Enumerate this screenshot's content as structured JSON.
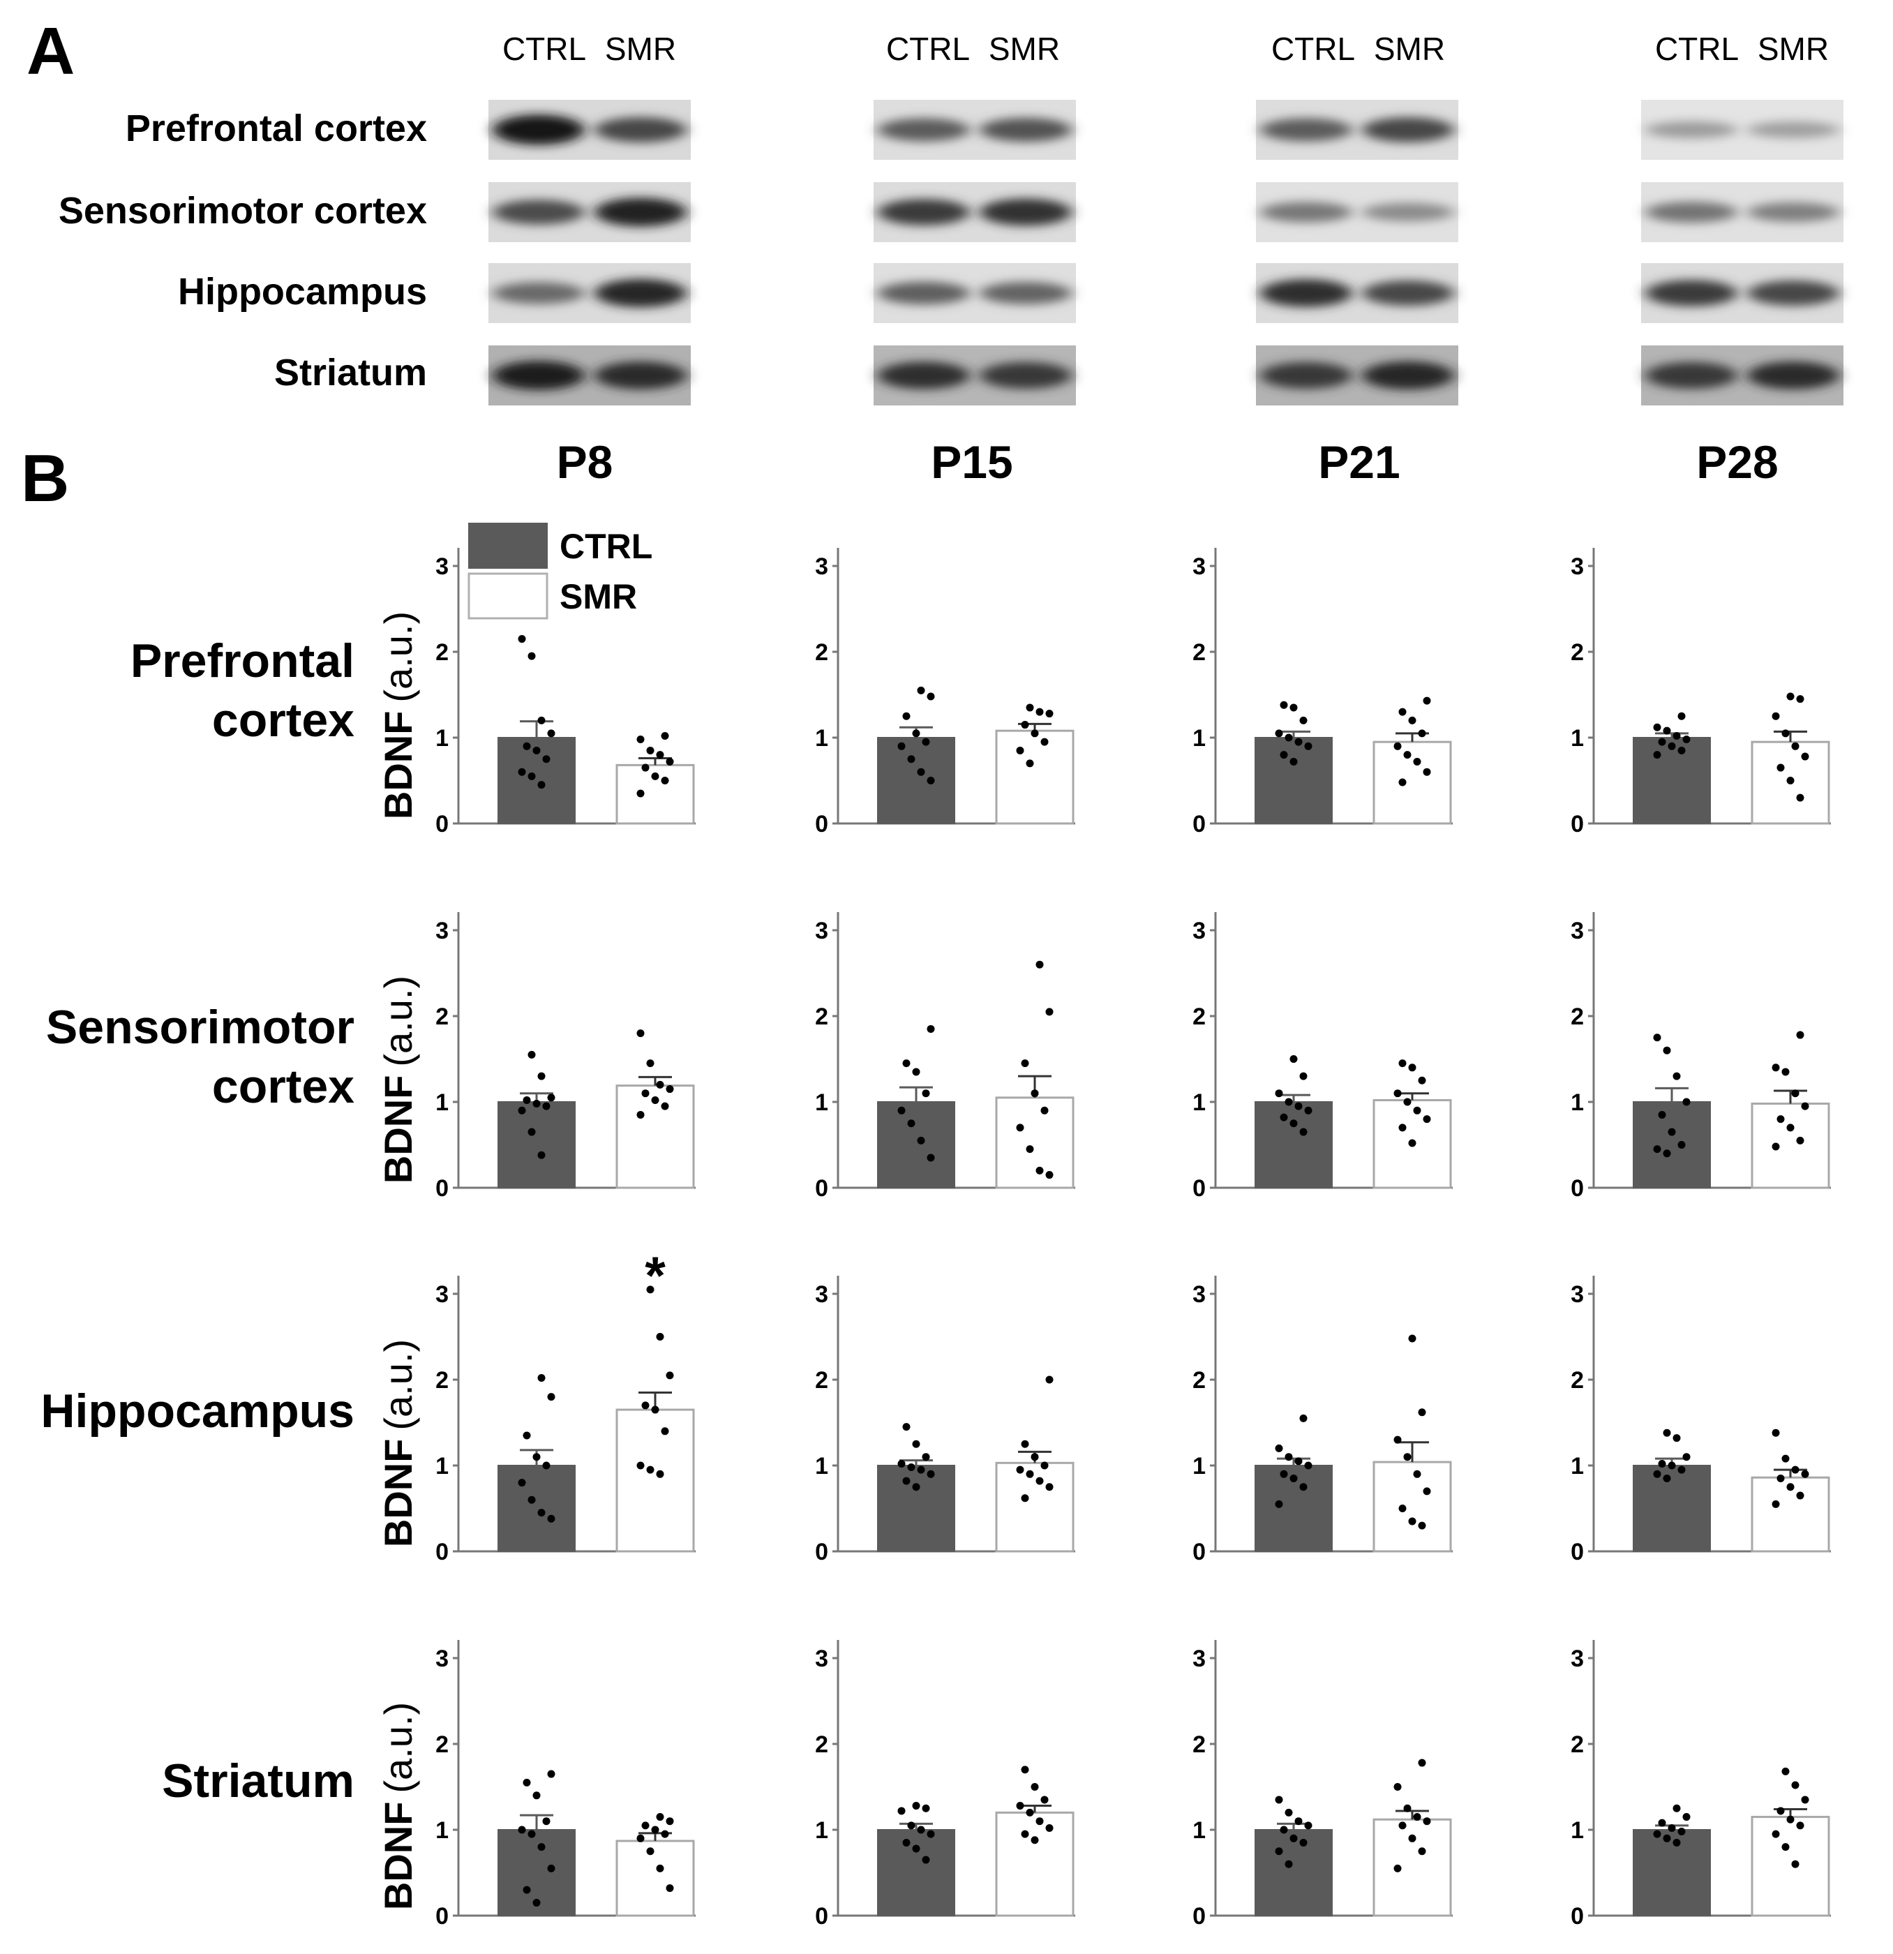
{
  "panel_a_label": "A",
  "panel_b_label": "B",
  "blot_lane_labels": [
    "CTRL",
    "SMR"
  ],
  "regions": [
    "Prefrontal cortex",
    "Sensorimotor cortex",
    "Hippocampus",
    "Striatum"
  ],
  "regions_b": [
    [
      "Prefrontal",
      "cortex"
    ],
    [
      "Sensorimotor",
      "cortex"
    ],
    [
      "Hippocampus"
    ],
    [
      "Striatum"
    ]
  ],
  "ages": [
    "P8",
    "P15",
    "P21",
    "P28"
  ],
  "ylabel_bold": "BDNF",
  "ylabel_unit": "(a.u.)",
  "legend": [
    {
      "label": "CTRL",
      "color": "#5a5a5a"
    },
    {
      "label": "SMR",
      "color": "#ffffff"
    }
  ],
  "blot_intensity": [
    [
      [
        0.98,
        0.72
      ],
      [
        0.62,
        0.66
      ],
      [
        0.62,
        0.72
      ],
      [
        0.3,
        0.28
      ]
    ],
    [
      [
        0.7,
        0.9
      ],
      [
        0.78,
        0.82
      ],
      [
        0.48,
        0.38
      ],
      [
        0.5,
        0.44
      ]
    ],
    [
      [
        0.55,
        0.88
      ],
      [
        0.6,
        0.58
      ],
      [
        0.85,
        0.72
      ],
      [
        0.78,
        0.72
      ]
    ],
    [
      [
        0.92,
        0.86
      ],
      [
        0.84,
        0.8
      ],
      [
        0.8,
        0.88
      ],
      [
        0.8,
        0.86
      ]
    ]
  ],
  "chart_data": {
    "type": "bar",
    "layout": "4x4 grid: rows = brain regions, columns = postnatal ages",
    "ylabel": "BDNF (a.u.)",
    "ylim": [
      0,
      3
    ],
    "yticks": [
      0,
      1,
      2,
      3
    ],
    "groups": [
      "CTRL",
      "SMR"
    ],
    "colors": {
      "CTRL": "#5a5a5a",
      "SMR": "#ffffff"
    },
    "panels": [
      {
        "region": "Prefrontal cortex",
        "age": "P8",
        "CTRL": {
          "mean": 1.0,
          "sem": 0.19,
          "points": [
            2.15,
            1.95,
            1.2,
            1.05,
            0.9,
            0.85,
            0.75,
            0.6,
            0.55,
            0.45
          ]
        },
        "SMR": {
          "mean": 0.68,
          "sem": 0.08,
          "points": [
            1.02,
            0.98,
            0.85,
            0.8,
            0.72,
            0.65,
            0.55,
            0.5,
            0.35
          ]
        }
      },
      {
        "region": "Prefrontal cortex",
        "age": "P15",
        "CTRL": {
          "mean": 1.0,
          "sem": 0.12,
          "points": [
            1.55,
            1.48,
            1.25,
            1.05,
            0.95,
            0.9,
            0.75,
            0.6,
            0.5
          ]
        },
        "SMR": {
          "mean": 1.08,
          "sem": 0.08,
          "points": [
            1.35,
            1.3,
            1.28,
            1.15,
            1.05,
            0.95,
            0.85,
            0.7
          ]
        }
      },
      {
        "region": "Prefrontal cortex",
        "age": "P21",
        "CTRL": {
          "mean": 1.0,
          "sem": 0.07,
          "points": [
            1.38,
            1.35,
            1.2,
            1.05,
            1.0,
            0.95,
            0.9,
            0.8,
            0.72
          ]
        },
        "SMR": {
          "mean": 0.95,
          "sem": 0.1,
          "points": [
            1.43,
            1.3,
            1.2,
            1.05,
            0.9,
            0.8,
            0.72,
            0.6,
            0.48
          ]
        }
      },
      {
        "region": "Prefrontal cortex",
        "age": "P28",
        "CTRL": {
          "mean": 1.0,
          "sem": 0.05,
          "points": [
            1.25,
            1.12,
            1.08,
            1.02,
            0.98,
            0.95,
            0.9,
            0.85,
            0.8
          ]
        },
        "SMR": {
          "mean": 0.95,
          "sem": 0.12,
          "points": [
            1.48,
            1.45,
            1.25,
            1.05,
            0.9,
            0.78,
            0.65,
            0.5,
            0.3
          ]
        }
      },
      {
        "region": "Sensorimotor cortex",
        "age": "P8",
        "CTRL": {
          "mean": 1.0,
          "sem": 0.1,
          "points": [
            1.55,
            1.3,
            1.05,
            1.02,
            0.98,
            0.95,
            0.9,
            0.65,
            0.38
          ]
        },
        "SMR": {
          "mean": 1.19,
          "sem": 0.1,
          "points": [
            1.8,
            1.45,
            1.2,
            1.15,
            1.1,
            1.02,
            0.95,
            0.85
          ]
        }
      },
      {
        "region": "Sensorimotor cortex",
        "age": "P15",
        "CTRL": {
          "mean": 1.0,
          "sem": 0.17,
          "points": [
            1.85,
            1.45,
            1.35,
            1.1,
            0.9,
            0.75,
            0.55,
            0.35
          ]
        },
        "SMR": {
          "mean": 1.05,
          "sem": 0.25,
          "points": [
            2.6,
            2.05,
            1.45,
            1.1,
            0.9,
            0.7,
            0.45,
            0.2,
            0.15
          ]
        }
      },
      {
        "region": "Sensorimotor cortex",
        "age": "P21",
        "CTRL": {
          "mean": 1.0,
          "sem": 0.08,
          "points": [
            1.5,
            1.3,
            1.1,
            1.0,
            0.95,
            0.9,
            0.82,
            0.75,
            0.65
          ]
        },
        "SMR": {
          "mean": 1.02,
          "sem": 0.08,
          "points": [
            1.45,
            1.4,
            1.25,
            1.1,
            1.0,
            0.9,
            0.8,
            0.7,
            0.52
          ]
        }
      },
      {
        "region": "Sensorimotor cortex",
        "age": "P28",
        "CTRL": {
          "mean": 1.0,
          "sem": 0.16,
          "points": [
            1.75,
            1.6,
            1.3,
            1.0,
            0.85,
            0.65,
            0.5,
            0.45,
            0.4
          ]
        },
        "SMR": {
          "mean": 0.98,
          "sem": 0.15,
          "points": [
            1.78,
            1.4,
            1.35,
            1.1,
            0.95,
            0.8,
            0.7,
            0.55,
            0.48
          ]
        }
      },
      {
        "region": "Hippocampus",
        "age": "P8",
        "CTRL": {
          "mean": 1.0,
          "sem": 0.18,
          "points": [
            2.02,
            1.8,
            1.35,
            1.1,
            1.0,
            0.8,
            0.6,
            0.45,
            0.38
          ]
        },
        "SMR": {
          "mean": 1.65,
          "sem": 0.2,
          "points": [
            3.05,
            2.5,
            2.05,
            1.7,
            1.65,
            1.4,
            1.0,
            0.95,
            0.9
          ]
        },
        "significance": "*"
      },
      {
        "region": "Hippocampus",
        "age": "P15",
        "CTRL": {
          "mean": 1.0,
          "sem": 0.06,
          "points": [
            1.45,
            1.25,
            1.1,
            1.02,
            0.98,
            0.95,
            0.9,
            0.82,
            0.75
          ]
        },
        "SMR": {
          "mean": 1.03,
          "sem": 0.13,
          "points": [
            2.0,
            1.25,
            1.1,
            1.0,
            0.95,
            0.9,
            0.82,
            0.75,
            0.62
          ]
        }
      },
      {
        "region": "Hippocampus",
        "age": "P21",
        "CTRL": {
          "mean": 1.0,
          "sem": 0.08,
          "points": [
            1.55,
            1.2,
            1.1,
            1.05,
            1.0,
            0.9,
            0.85,
            0.75,
            0.55
          ]
        },
        "SMR": {
          "mean": 1.04,
          "sem": 0.23,
          "points": [
            2.48,
            1.62,
            1.3,
            1.1,
            0.9,
            0.7,
            0.5,
            0.35,
            0.3
          ]
        }
      },
      {
        "region": "Hippocampus",
        "age": "P28",
        "CTRL": {
          "mean": 1.0,
          "sem": 0.08,
          "points": [
            1.38,
            1.32,
            1.1,
            1.02,
            1.0,
            0.95,
            0.9,
            0.85
          ]
        },
        "SMR": {
          "mean": 0.86,
          "sem": 0.09,
          "points": [
            1.38,
            1.08,
            0.95,
            0.9,
            0.85,
            0.75,
            0.65,
            0.55
          ]
        }
      },
      {
        "region": "Striatum",
        "age": "P8",
        "CTRL": {
          "mean": 1.0,
          "sem": 0.17,
          "points": [
            1.65,
            1.55,
            1.4,
            1.1,
            1.0,
            0.95,
            0.8,
            0.55,
            0.3,
            0.15
          ]
        },
        "SMR": {
          "mean": 0.87,
          "sem": 0.09,
          "points": [
            1.15,
            1.1,
            1.05,
            1.0,
            0.95,
            0.9,
            0.75,
            0.55,
            0.32
          ]
        }
      },
      {
        "region": "Striatum",
        "age": "P15",
        "CTRL": {
          "mean": 1.0,
          "sem": 0.07,
          "points": [
            1.28,
            1.25,
            1.22,
            1.05,
            1.0,
            0.95,
            0.85,
            0.78,
            0.65
          ]
        },
        "SMR": {
          "mean": 1.2,
          "sem": 0.08,
          "points": [
            1.7,
            1.5,
            1.35,
            1.28,
            1.2,
            1.1,
            1.02,
            0.95,
            0.88
          ]
        }
      },
      {
        "region": "Striatum",
        "age": "P21",
        "CTRL": {
          "mean": 1.0,
          "sem": 0.07,
          "points": [
            1.35,
            1.2,
            1.1,
            1.05,
            1.0,
            0.9,
            0.85,
            0.75,
            0.6
          ]
        },
        "SMR": {
          "mean": 1.12,
          "sem": 0.1,
          "points": [
            1.78,
            1.5,
            1.25,
            1.15,
            1.1,
            1.05,
            0.9,
            0.75,
            0.55
          ]
        }
      },
      {
        "region": "Striatum",
        "age": "P28",
        "CTRL": {
          "mean": 1.0,
          "sem": 0.05,
          "points": [
            1.25,
            1.15,
            1.08,
            1.02,
            0.98,
            0.95,
            0.9,
            0.85
          ]
        },
        "SMR": {
          "mean": 1.15,
          "sem": 0.09,
          "points": [
            1.68,
            1.52,
            1.35,
            1.22,
            1.12,
            1.05,
            0.95,
            0.8,
            0.6
          ]
        }
      }
    ]
  }
}
